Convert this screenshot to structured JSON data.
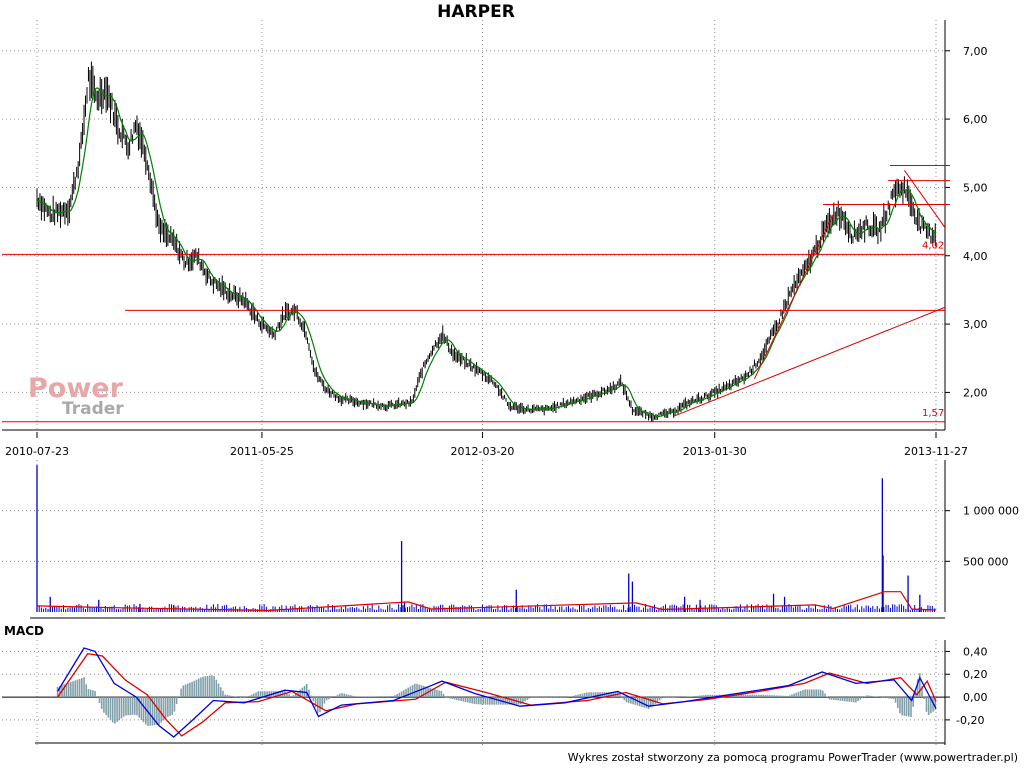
{
  "chart_data": [
    {
      "type": "line",
      "panel": "price",
      "title": "HARPER",
      "x_tick_labels": [
        "2010-07-23",
        "2011-05-25",
        "2012-03-20",
        "2013-01-30",
        "2013-11-27"
      ],
      "y_tick_labels": [
        "7,00",
        "6,00",
        "5,00",
        "4,00",
        "3,00",
        "2,00"
      ],
      "ylim": [
        1.45,
        7.45
      ],
      "grid": true,
      "series": [
        {
          "values": [
            {
              "x": "2010-07-23",
              "y": 4.85
            },
            {
              "x": "2010-08-10",
              "y": 4.6
            },
            {
              "x": "2010-09-05",
              "y": 4.7
            },
            {
              "x": "2010-09-20",
              "y": 5.5
            },
            {
              "x": "2010-10-01",
              "y": 6.6
            },
            {
              "x": "2010-10-12",
              "y": 6.3
            },
            {
              "x": "2010-10-25",
              "y": 6.45
            },
            {
              "x": "2010-11-10",
              "y": 5.9
            },
            {
              "x": "2010-11-25",
              "y": 5.6
            },
            {
              "x": "2010-12-05",
              "y": 5.95
            },
            {
              "x": "2010-12-20",
              "y": 5.4
            },
            {
              "x": "2011-01-05",
              "y": 4.4
            },
            {
              "x": "2011-01-25",
              "y": 4.2
            },
            {
              "x": "2011-02-10",
              "y": 3.9
            },
            {
              "x": "2011-02-25",
              "y": 4.0
            },
            {
              "x": "2011-03-15",
              "y": 3.65
            },
            {
              "x": "2011-04-10",
              "y": 3.45
            },
            {
              "x": "2011-05-01",
              "y": 3.35
            },
            {
              "x": "2011-05-20",
              "y": 3.05
            },
            {
              "x": "2011-06-10",
              "y": 2.85
            },
            {
              "x": "2011-06-25",
              "y": 3.15
            },
            {
              "x": "2011-07-10",
              "y": 3.2
            },
            {
              "x": "2011-07-25",
              "y": 2.85
            },
            {
              "x": "2011-08-05",
              "y": 2.3
            },
            {
              "x": "2011-08-20",
              "y": 2.05
            },
            {
              "x": "2011-09-10",
              "y": 1.9
            },
            {
              "x": "2011-10-10",
              "y": 1.85
            },
            {
              "x": "2011-11-10",
              "y": 1.8
            },
            {
              "x": "2011-12-15",
              "y": 1.85
            },
            {
              "x": "2011-12-28",
              "y": 2.3
            },
            {
              "x": "2012-01-10",
              "y": 2.6
            },
            {
              "x": "2012-01-25",
              "y": 2.85
            },
            {
              "x": "2012-02-10",
              "y": 2.55
            },
            {
              "x": "2012-03-10",
              "y": 2.35
            },
            {
              "x": "2012-04-05",
              "y": 2.15
            },
            {
              "x": "2012-04-25",
              "y": 1.8
            },
            {
              "x": "2012-05-20",
              "y": 1.75
            },
            {
              "x": "2012-06-15",
              "y": 1.75
            },
            {
              "x": "2012-07-15",
              "y": 1.85
            },
            {
              "x": "2012-08-15",
              "y": 1.95
            },
            {
              "x": "2012-09-10",
              "y": 2.05
            },
            {
              "x": "2012-09-25",
              "y": 2.15
            },
            {
              "x": "2012-10-10",
              "y": 1.75
            },
            {
              "x": "2012-11-05",
              "y": 1.65
            },
            {
              "x": "2012-12-01",
              "y": 1.7
            },
            {
              "x": "2012-12-25",
              "y": 1.85
            },
            {
              "x": "2013-01-20",
              "y": 1.95
            },
            {
              "x": "2013-02-20",
              "y": 2.1
            },
            {
              "x": "2013-03-15",
              "y": 2.25
            },
            {
              "x": "2013-04-05",
              "y": 2.55
            },
            {
              "x": "2013-04-25",
              "y": 3.0
            },
            {
              "x": "2013-05-15",
              "y": 3.5
            },
            {
              "x": "2013-06-05",
              "y": 3.85
            },
            {
              "x": "2013-06-25",
              "y": 4.3
            },
            {
              "x": "2013-07-15",
              "y": 4.65
            },
            {
              "x": "2013-07-25",
              "y": 4.55
            },
            {
              "x": "2013-08-05",
              "y": 4.3
            },
            {
              "x": "2013-08-25",
              "y": 4.45
            },
            {
              "x": "2013-09-10",
              "y": 4.35
            },
            {
              "x": "2013-09-20",
              "y": 4.6
            },
            {
              "x": "2013-10-01",
              "y": 4.95
            },
            {
              "x": "2013-10-15",
              "y": 5.0
            },
            {
              "x": "2013-10-25",
              "y": 4.75
            },
            {
              "x": "2013-11-05",
              "y": 4.45
            },
            {
              "x": "2013-11-20",
              "y": 4.3
            },
            {
              "x": "2013-11-27",
              "y": 4.35
            }
          ]
        }
      ],
      "annotations": {
        "labels": [
          "4,02",
          "1,57"
        ],
        "horizontal_levels": [
          4.02,
          1.57,
          3.2,
          4.75,
          5.1,
          5.32
        ],
        "trend_lines": [
          {
            "from": {
              "x": "2012-12-05",
              "y": 1.65
            },
            "to": {
              "x": "2013-12-10",
              "y": 3.25
            }
          },
          {
            "from": {
              "x": "2013-03-25",
              "y": 2.2
            },
            "to": {
              "x": "2013-07-10",
              "y": 4.6
            }
          },
          {
            "from": {
              "x": "2013-10-15",
              "y": 5.25
            },
            "to": {
              "x": "2013-12-10",
              "y": 4.4
            }
          }
        ]
      }
    },
    {
      "type": "bar",
      "panel": "volume",
      "y_tick_labels": [
        "1 000 000",
        "500 000"
      ],
      "ylim": [
        0,
        1500000
      ],
      "series": [
        {
          "values": [
            {
              "x": "2010-07-23",
              "y": 1450000
            },
            {
              "x": "2010-08-10",
              "y": 150000
            },
            {
              "x": "2010-10-15",
              "y": 120000
            },
            {
              "x": "2010-12-10",
              "y": 80000
            },
            {
              "x": "2011-01-25",
              "y": 70000
            },
            {
              "x": "2011-12-01",
              "y": 700000
            },
            {
              "x": "2011-12-05",
              "y": 100000
            },
            {
              "x": "2012-05-05",
              "y": 220000
            },
            {
              "x": "2012-10-05",
              "y": 380000
            },
            {
              "x": "2012-10-10",
              "y": 300000
            },
            {
              "x": "2012-12-20",
              "y": 150000
            },
            {
              "x": "2013-01-10",
              "y": 120000
            },
            {
              "x": "2013-04-20",
              "y": 180000
            },
            {
              "x": "2013-05-05",
              "y": 150000
            },
            {
              "x": "2013-09-15",
              "y": 1320000
            },
            {
              "x": "2013-09-16",
              "y": 560000
            },
            {
              "x": "2013-10-20",
              "y": 360000
            },
            {
              "x": "2013-11-05",
              "y": 170000
            }
          ]
        },
        {
          "values": [
            {
              "x": "2010-07-23",
              "y": 60000
            },
            {
              "x": "2010-10-15",
              "y": 45000
            },
            {
              "x": "2011-06-01",
              "y": 15000
            },
            {
              "x": "2011-12-10",
              "y": 100000
            },
            {
              "x": "2012-01-10",
              "y": 30000
            },
            {
              "x": "2012-10-15",
              "y": 90000
            },
            {
              "x": "2012-11-20",
              "y": 25000
            },
            {
              "x": "2013-06-15",
              "y": 70000
            },
            {
              "x": "2013-07-10",
              "y": 35000
            },
            {
              "x": "2013-09-18",
              "y": 200000
            },
            {
              "x": "2013-10-10",
              "y": 200000
            },
            {
              "x": "2013-10-25",
              "y": 30000
            },
            {
              "x": "2013-11-27",
              "y": 20000
            }
          ]
        }
      ]
    },
    {
      "type": "line",
      "panel": "macd",
      "title": "MACD",
      "y_tick_labels": [
        "0,40",
        "0,20",
        "0,00",
        "-0,20"
      ],
      "ylim": [
        -0.42,
        0.5
      ],
      "series": [
        {
          "values": [
            {
              "x": "2010-08-20",
              "y": 0.05
            },
            {
              "x": "2010-09-25",
              "y": 0.43
            },
            {
              "x": "2010-10-10",
              "y": 0.4
            },
            {
              "x": "2010-11-05",
              "y": 0.12
            },
            {
              "x": "2010-12-05",
              "y": 0.0
            },
            {
              "x": "2011-01-05",
              "y": -0.25
            },
            {
              "x": "2011-01-25",
              "y": -0.35
            },
            {
              "x": "2011-02-20",
              "y": -0.2
            },
            {
              "x": "2011-03-20",
              "y": -0.03
            },
            {
              "x": "2011-05-01",
              "y": -0.05
            },
            {
              "x": "2011-06-25",
              "y": 0.06
            },
            {
              "x": "2011-07-25",
              "y": 0.04
            },
            {
              "x": "2011-08-10",
              "y": -0.17
            },
            {
              "x": "2011-09-10",
              "y": -0.07
            },
            {
              "x": "2011-11-20",
              "y": -0.03
            },
            {
              "x": "2012-01-10",
              "y": 0.1
            },
            {
              "x": "2012-01-25",
              "y": 0.14
            },
            {
              "x": "2012-03-10",
              "y": 0.03
            },
            {
              "x": "2012-05-10",
              "y": -0.08
            },
            {
              "x": "2012-07-10",
              "y": -0.05
            },
            {
              "x": "2012-09-20",
              "y": 0.05
            },
            {
              "x": "2012-11-01",
              "y": -0.08
            },
            {
              "x": "2012-12-20",
              "y": -0.04
            },
            {
              "x": "2013-03-10",
              "y": 0.04
            },
            {
              "x": "2013-05-10",
              "y": 0.1
            },
            {
              "x": "2013-06-25",
              "y": 0.22
            },
            {
              "x": "2013-08-10",
              "y": 0.12
            },
            {
              "x": "2013-10-01",
              "y": 0.15
            },
            {
              "x": "2013-10-25",
              "y": -0.03
            },
            {
              "x": "2013-11-05",
              "y": 0.17
            },
            {
              "x": "2013-11-27",
              "y": -0.1
            }
          ]
        },
        {
          "values": [
            {
              "x": "2010-08-20",
              "y": 0.0
            },
            {
              "x": "2010-09-30",
              "y": 0.38
            },
            {
              "x": "2010-10-20",
              "y": 0.36
            },
            {
              "x": "2010-11-20",
              "y": 0.15
            },
            {
              "x": "2010-12-20",
              "y": 0.02
            },
            {
              "x": "2011-01-15",
              "y": -0.2
            },
            {
              "x": "2011-02-05",
              "y": -0.34
            },
            {
              "x": "2011-03-05",
              "y": -0.22
            },
            {
              "x": "2011-04-05",
              "y": -0.05
            },
            {
              "x": "2011-05-20",
              "y": -0.04
            },
            {
              "x": "2011-07-05",
              "y": 0.05
            },
            {
              "x": "2011-08-20",
              "y": -0.12
            },
            {
              "x": "2011-10-01",
              "y": -0.06
            },
            {
              "x": "2011-12-20",
              "y": -0.02
            },
            {
              "x": "2012-01-30",
              "y": 0.13
            },
            {
              "x": "2012-03-25",
              "y": 0.04
            },
            {
              "x": "2012-05-25",
              "y": -0.07
            },
            {
              "x": "2012-08-10",
              "y": -0.03
            },
            {
              "x": "2012-10-01",
              "y": 0.04
            },
            {
              "x": "2012-11-20",
              "y": -0.06
            },
            {
              "x": "2013-01-20",
              "y": -0.02
            },
            {
              "x": "2013-04-01",
              "y": 0.05
            },
            {
              "x": "2013-06-01",
              "y": 0.12
            },
            {
              "x": "2013-07-05",
              "y": 0.21
            },
            {
              "x": "2013-08-25",
              "y": 0.12
            },
            {
              "x": "2013-10-10",
              "y": 0.17
            },
            {
              "x": "2013-11-01",
              "y": 0.02
            },
            {
              "x": "2013-11-15",
              "y": 0.14
            },
            {
              "x": "2013-11-27",
              "y": -0.04
            }
          ]
        }
      ]
    }
  ],
  "colors": {
    "price_bars": "#000000",
    "sma": "#008000",
    "support": "#e00000",
    "volume_bars": "#0000cc",
    "volume_ma": "#e00000",
    "macd_line": "#0000dd",
    "signal_line": "#dd0000",
    "histogram": "#7f9fa8",
    "grid": "#909090",
    "watermark": "#e7a7a7"
  },
  "watermark": {
    "word1": "Power",
    "word2": "Trader"
  },
  "footer": "Wykres został stworzony za pomocą programu PowerTrader (www.powertrader.pl)"
}
